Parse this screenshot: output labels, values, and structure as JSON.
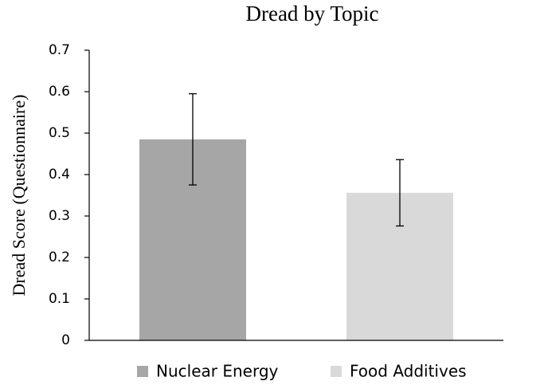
{
  "chart_data": {
    "type": "bar",
    "title": "Dread by Topic",
    "y_label": "Dread Score (Questionnaire)",
    "series": [
      {
        "name": "Nuclear Energy",
        "color": "#a6a6a6",
        "values": [
          0.485
        ],
        "errors": [
          0.11
        ]
      },
      {
        "name": "Food Additives",
        "color": "#d9d9d9",
        "values": [
          0.356
        ],
        "errors": [
          0.08
        ]
      }
    ],
    "ylim": [
      0,
      0.7
    ],
    "yticks": [
      0,
      0.1,
      0.2,
      0.3,
      0.4,
      0.5,
      0.6,
      0.7
    ],
    "grid": false,
    "legend": "bottom"
  }
}
